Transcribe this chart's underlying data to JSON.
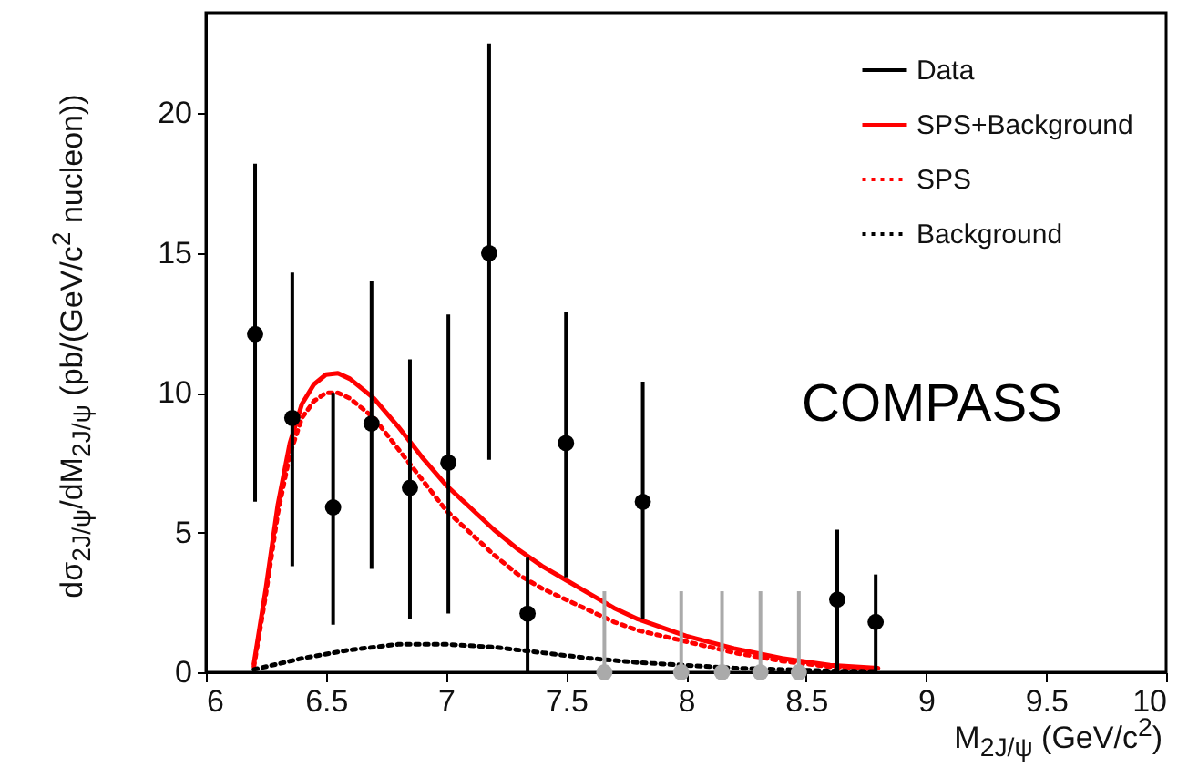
{
  "chart_data": {
    "type": "scatter",
    "xlabel": "M$_{2J/ψ}$ (GeV/c$^{2}$)",
    "ylabel": "dσ$_{2J/ψ}$/dM$_{2J/ψ}$ (pb/(GeV/c$^{2}$ nucleon))",
    "annotations": [
      "COMPASS"
    ],
    "xlim": [
      6,
      10
    ],
    "xticks": [
      6,
      6.5,
      7,
      7.5,
      8,
      8.5,
      9,
      9.5,
      10
    ],
    "ylim": [
      0,
      23.6
    ],
    "yticks": [
      0,
      5,
      10,
      15,
      20
    ],
    "grid": false,
    "legend": "top right",
    "series": [
      {
        "name": "Data",
        "marker": "circle",
        "color": "#000000",
        "x": [
          6.205,
          6.36,
          6.53,
          6.69,
          6.85,
          7.01,
          7.18,
          7.34,
          7.5,
          7.82,
          8.63,
          8.79
        ],
        "values": [
          12.1,
          9.1,
          5.9,
          8.9,
          6.6,
          7.5,
          15.0,
          2.1,
          8.2,
          6.1,
          2.6,
          1.8
        ],
        "errors": [
          [
            6.1,
            18.2
          ],
          [
            3.8,
            14.3
          ],
          [
            1.7,
            10.0
          ],
          [
            3.7,
            14.0
          ],
          [
            1.9,
            11.2
          ],
          [
            2.1,
            12.8
          ],
          [
            7.6,
            22.5
          ],
          [
            0,
            4.1
          ],
          [
            3.4,
            12.9
          ],
          [
            1.9,
            10.4
          ],
          [
            0,
            5.1
          ],
          [
            0,
            3.5
          ]
        ]
      },
      {
        "marker": "circle",
        "color": "#aaaaaa",
        "x": [
          7.66,
          7.98,
          8.15,
          8.31,
          8.47
        ],
        "values": [
          0,
          0,
          0,
          0,
          0
        ],
        "errors": [
          [
            0,
            2.9
          ],
          [
            0,
            2.9
          ],
          [
            0,
            2.9
          ],
          [
            0,
            2.9
          ],
          [
            0,
            2.9
          ]
        ]
      },
      {
        "name": "SPS+Background",
        "type": "line",
        "line_style": "solid",
        "color": "#ff0000",
        "x": [
          6.2,
          6.25,
          6.3,
          6.35,
          6.4,
          6.45,
          6.5,
          6.55,
          6.6,
          6.7,
          6.8,
          6.9,
          7.0,
          7.1,
          7.2,
          7.3,
          7.4,
          7.5,
          7.6,
          7.7,
          7.8,
          7.9,
          8.0,
          8.2,
          8.4,
          8.6,
          8.8
        ],
        "values": [
          0.3,
          3,
          6,
          8.2,
          9.6,
          10.3,
          10.65,
          10.7,
          10.5,
          9.8,
          8.8,
          7.7,
          6.7,
          5.9,
          5.1,
          4.4,
          3.8,
          3.3,
          2.8,
          2.3,
          1.9,
          1.6,
          1.3,
          0.85,
          0.5,
          0.25,
          0.15
        ]
      },
      {
        "name": "SPS",
        "type": "line",
        "line_style": "dotted",
        "color": "#ff0000",
        "x": [
          6.2,
          6.25,
          6.3,
          6.35,
          6.4,
          6.45,
          6.5,
          6.55,
          6.6,
          6.7,
          6.8,
          6.9,
          7.0,
          7.1,
          7.2,
          7.3,
          7.4,
          7.5,
          7.6,
          7.7,
          7.8,
          7.9,
          8.0,
          8.2,
          8.4,
          8.6,
          8.8
        ],
        "values": [
          0.2,
          2.8,
          5.7,
          7.8,
          9.1,
          9.7,
          10.0,
          10.0,
          9.8,
          9.1,
          8.0,
          6.9,
          5.8,
          5.0,
          4.2,
          3.5,
          3.0,
          2.6,
          2.2,
          1.8,
          1.5,
          1.3,
          1.1,
          0.7,
          0.4,
          0.2,
          0.1
        ]
      },
      {
        "name": "Background",
        "type": "line",
        "line_style": "dotted",
        "color": "#000000",
        "x": [
          6.2,
          6.4,
          6.6,
          6.8,
          7.0,
          7.2,
          7.4,
          7.6,
          7.8,
          8.0,
          8.2,
          8.4,
          8.6,
          8.8
        ],
        "values": [
          0.1,
          0.5,
          0.8,
          1.0,
          1.0,
          0.9,
          0.7,
          0.5,
          0.35,
          0.25,
          0.15,
          0.1,
          0.05,
          0.03
        ]
      }
    ]
  }
}
